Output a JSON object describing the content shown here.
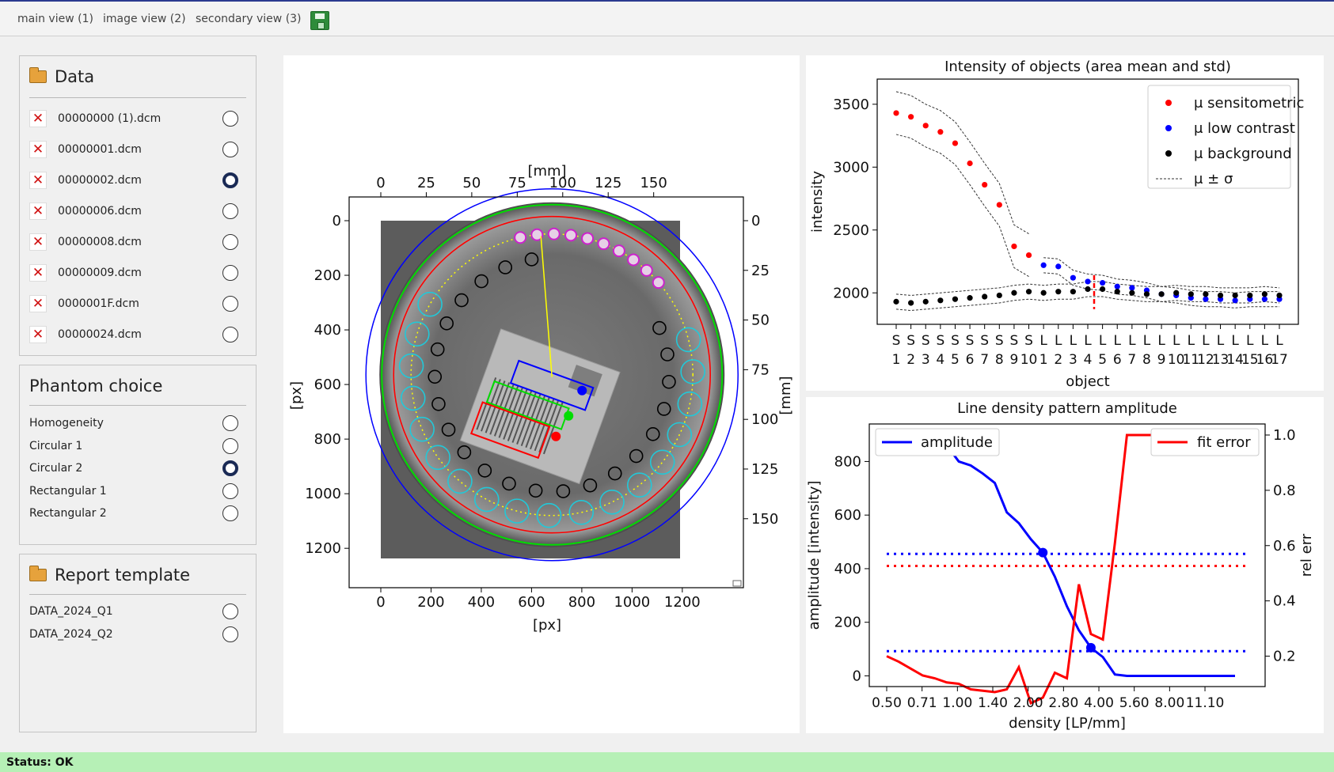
{
  "toolbar": {
    "tabs": [
      "main view (1)",
      "image view (2)",
      "secondary view (3)"
    ],
    "save_icon": "floppy-disk-icon"
  },
  "data_panel": {
    "title": "Data",
    "files": [
      {
        "name": "00000000 (1).dcm",
        "selected": false
      },
      {
        "name": "00000001.dcm",
        "selected": false
      },
      {
        "name": "00000002.dcm",
        "selected": true
      },
      {
        "name": "00000006.dcm",
        "selected": false
      },
      {
        "name": "00000008.dcm",
        "selected": false
      },
      {
        "name": "00000009.dcm",
        "selected": false
      },
      {
        "name": "0000001F.dcm",
        "selected": false
      },
      {
        "name": "00000024.dcm",
        "selected": false
      }
    ]
  },
  "phantom_panel": {
    "title": "Phantom choice",
    "options": [
      {
        "label": "Homogeneity",
        "selected": false
      },
      {
        "label": "Circular 1",
        "selected": false
      },
      {
        "label": "Circular 2",
        "selected": true
      },
      {
        "label": "Rectangular 1",
        "selected": false
      },
      {
        "label": "Rectangular 2",
        "selected": false
      }
    ]
  },
  "report_panel": {
    "title": "Report template",
    "options": [
      {
        "label": "DATA_2024_Q1",
        "selected": false
      },
      {
        "label": "DATA_2024_Q2",
        "selected": false
      }
    ]
  },
  "image_view": {
    "top_label": "[mm]",
    "bottom_label": "[px]",
    "left_label": "[px]",
    "right_label": "[mm]",
    "px_ticks": [
      "0",
      "200",
      "400",
      "600",
      "800",
      "1000",
      "1200"
    ],
    "mm_ticks_top": [
      "0",
      "25",
      "50",
      "75",
      "100",
      "125",
      "150"
    ],
    "mm_ticks_right": [
      "0",
      "25",
      "50",
      "75",
      "100",
      "125",
      "150"
    ]
  },
  "chart_data": [
    {
      "type": "scatter",
      "title": "Intensity of objects (area mean and std)",
      "xlabel": "object",
      "ylabel": "intensity",
      "ylim": [
        1750,
        3700
      ],
      "yticks": [
        2000,
        2500,
        3000,
        3500
      ],
      "categories": [
        "S1",
        "S2",
        "S3",
        "S4",
        "S5",
        "S6",
        "S7",
        "S8",
        "S9",
        "S10",
        "L1",
        "L2",
        "L3",
        "L4",
        "L5",
        "L6",
        "L7",
        "L8",
        "L9",
        "L10",
        "L11",
        "L12",
        "L13",
        "L14",
        "L15",
        "L16",
        "L17"
      ],
      "legend_position": "top-right",
      "legend": [
        "μ sensitometric",
        "μ low contrast",
        "μ background",
        "μ ± σ"
      ],
      "series": [
        {
          "name": "μ sensitometric",
          "color": "#ff0000",
          "values": [
            3430,
            3400,
            3330,
            3280,
            3190,
            3030,
            2860,
            2700,
            2370,
            2300,
            null,
            null,
            null,
            null,
            null,
            null,
            null,
            null,
            null,
            null,
            null,
            null,
            null,
            null,
            null,
            null,
            null
          ]
        },
        {
          "name": "μ low contrast",
          "color": "#0000ff",
          "values": [
            null,
            null,
            null,
            null,
            null,
            null,
            null,
            null,
            null,
            null,
            2220,
            2210,
            2120,
            2090,
            2080,
            2050,
            2040,
            2020,
            1990,
            1980,
            1960,
            1950,
            1950,
            1940,
            1950,
            1950,
            1950
          ]
        },
        {
          "name": "μ background",
          "color": "#000000",
          "values": [
            1930,
            1920,
            1930,
            1940,
            1950,
            1960,
            1970,
            1980,
            2000,
            2010,
            2000,
            2010,
            2010,
            2030,
            2030,
            2010,
            2000,
            1990,
            1990,
            2000,
            1990,
            1990,
            1980,
            1980,
            1980,
            1990,
            1980
          ]
        }
      ]
    },
    {
      "type": "line",
      "title": "Line density pattern amplitude",
      "xlabel": "density [LP/mm]",
      "ylabel": "amplitude [intensity]",
      "y2label": "rel err",
      "xtick_labels": [
        "0.50",
        "0.71",
        "1.00",
        "1.40",
        "2.00",
        "2.80",
        "4.00",
        "5.60",
        "8.00",
        "11.10"
      ],
      "ylim": [
        -40,
        940
      ],
      "y2lim": [
        0.09,
        1.04
      ],
      "yticks": [
        0,
        200,
        400,
        600,
        800
      ],
      "y2ticks": [
        0.2,
        0.4,
        0.6,
        0.8,
        1.0
      ],
      "series": [
        {
          "name": "amplitude",
          "color": "#0000ff",
          "axis": "left",
          "values": [
            910,
            905,
            900,
            890,
            880,
            860,
            800,
            785,
            755,
            720,
            610,
            570,
            510,
            460,
            370,
            260,
            170,
            105,
            70,
            5,
            0,
            0,
            0,
            0,
            0,
            0,
            0,
            0,
            0,
            0
          ]
        },
        {
          "name": "fit error",
          "color": "#ff0000",
          "axis": "right",
          "values": [
            0.2,
            0.18,
            0.155,
            0.13,
            0.12,
            0.105,
            0.1,
            0.08,
            0.075,
            0.07,
            0.08,
            0.16,
            0.03,
            0.05,
            0.14,
            0.12,
            0.46,
            0.28,
            0.26,
            0.61,
            1.0,
            1.0,
            1.0,
            1.0,
            1.0,
            1.0,
            1.0,
            1.0,
            1.0,
            1.0
          ]
        }
      ],
      "threshold_lines": [
        {
          "color": "#0000ff",
          "axis": "left",
          "value": 455
        },
        {
          "color": "#ff0000",
          "axis": "left",
          "value": 410
        },
        {
          "color": "#0000ff",
          "axis": "left",
          "value": 92
        }
      ],
      "legend_left": "amplitude",
      "legend_right": "fit error"
    }
  ],
  "status": {
    "text": "Status: OK"
  }
}
